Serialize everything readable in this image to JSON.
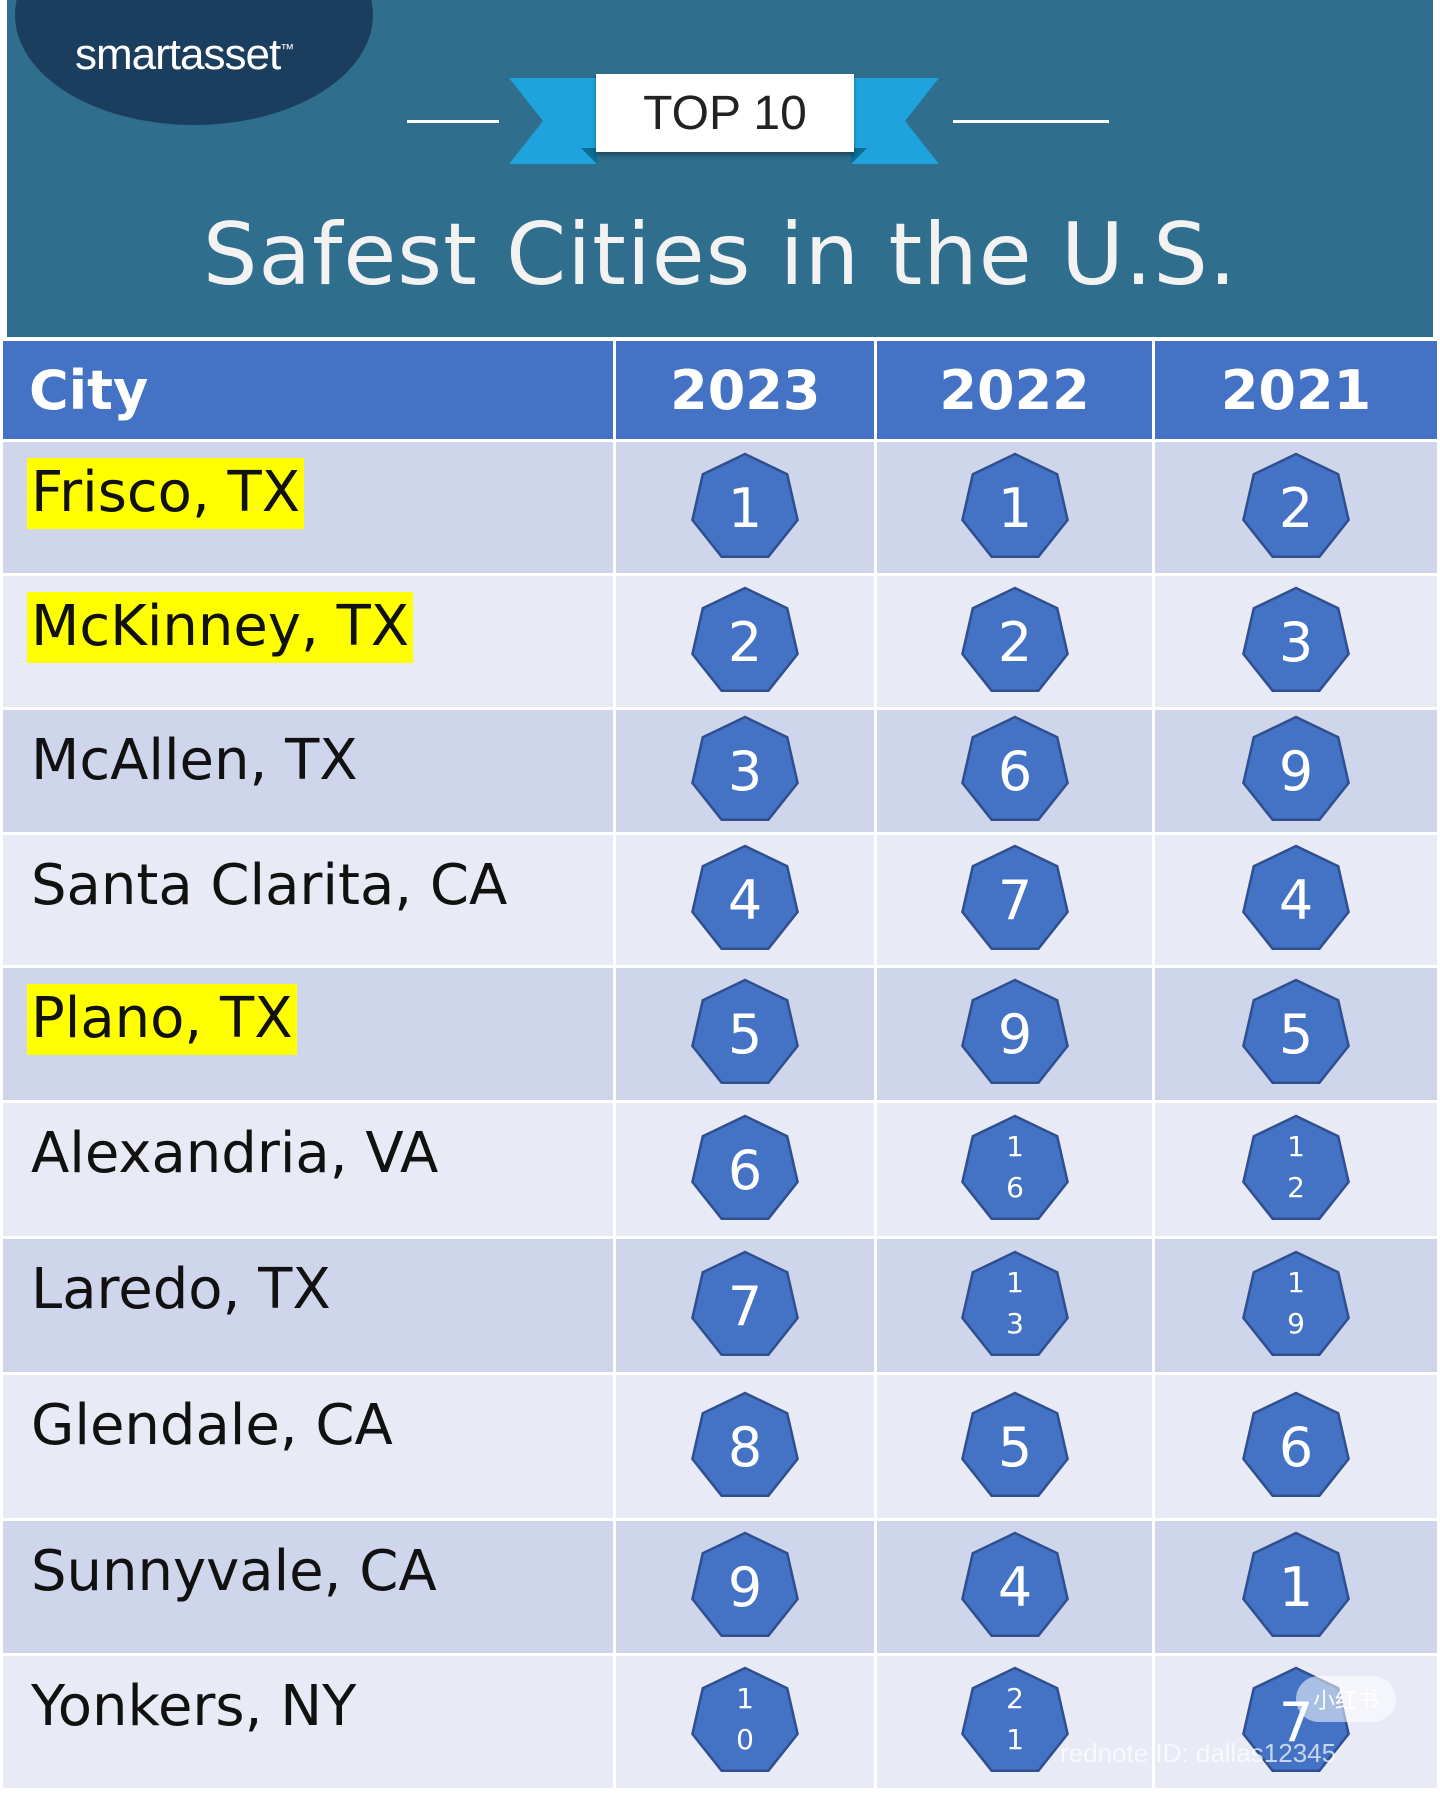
{
  "brand": {
    "logo_text": "smartasset",
    "logo_mark": "™"
  },
  "banner": {
    "label": "TOP 10"
  },
  "title": "Safest Cities in the U.S.",
  "table": {
    "headers": [
      "City",
      "2023",
      "2022",
      "2021"
    ],
    "rows": [
      {
        "city": "Frisco, TX",
        "highlight": true,
        "ranks": [
          "1",
          "1",
          "2"
        ]
      },
      {
        "city": "McKinney, TX",
        "highlight": true,
        "ranks": [
          "2",
          "2",
          "3"
        ]
      },
      {
        "city": "McAllen, TX",
        "highlight": false,
        "ranks": [
          "3",
          "6",
          "9"
        ]
      },
      {
        "city": "Santa Clarita, CA",
        "highlight": false,
        "ranks": [
          "4",
          "7",
          "4"
        ]
      },
      {
        "city": "Plano, TX",
        "highlight": true,
        "ranks": [
          "5",
          "9",
          "5"
        ]
      },
      {
        "city": "Alexandria, VA",
        "highlight": false,
        "ranks": [
          "6",
          "16",
          "12"
        ]
      },
      {
        "city": "Laredo, TX",
        "highlight": false,
        "ranks": [
          "7",
          "13",
          "19"
        ]
      },
      {
        "city": "Glendale, CA",
        "highlight": false,
        "ranks": [
          "8",
          "5",
          "6"
        ]
      },
      {
        "city": "Sunnyvale, CA",
        "highlight": false,
        "ranks": [
          "9",
          "4",
          "1"
        ]
      },
      {
        "city": "Yonkers, NY",
        "highlight": false,
        "ranks": [
          "10",
          "21",
          "7"
        ]
      }
    ]
  },
  "watermark": {
    "text": "rednote ID: dallas12345",
    "pill": "小红书"
  },
  "colors": {
    "header_bg": "#2f6e8c",
    "table_header": "#4472c4",
    "badge_fill": "#4472c4",
    "badge_stroke": "#2f4f8f",
    "highlight": "#ffff00"
  }
}
